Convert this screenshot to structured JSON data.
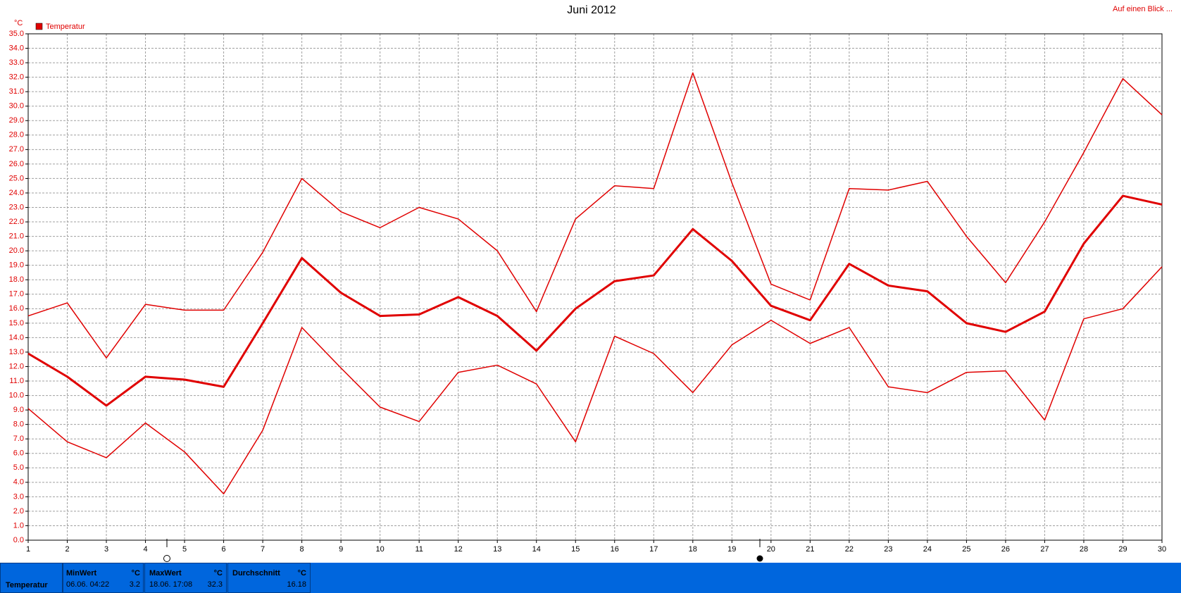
{
  "chart_data": {
    "type": "line",
    "title": "Juni 2012",
    "y_unit": "°C",
    "top_right_link": "Auf einen Blick ...",
    "legend": "Temperatur",
    "grid": true,
    "x": [
      1,
      2,
      3,
      4,
      5,
      6,
      7,
      8,
      9,
      10,
      11,
      12,
      13,
      14,
      15,
      16,
      17,
      18,
      19,
      20,
      21,
      22,
      23,
      24,
      25,
      26,
      27,
      28,
      29,
      30
    ],
    "xlim": [
      1,
      30
    ],
    "xticks": [
      1,
      2,
      3,
      4,
      5,
      6,
      7,
      8,
      9,
      10,
      11,
      12,
      13,
      14,
      15,
      16,
      17,
      18,
      19,
      20,
      21,
      22,
      23,
      24,
      25,
      26,
      27,
      28,
      29,
      30
    ],
    "ylim": [
      0,
      35
    ],
    "yticks": [
      {
        "value": 0,
        "label": "0.0"
      },
      {
        "value": 1,
        "label": "1.0"
      },
      {
        "value": 2,
        "label": "2.0"
      },
      {
        "value": 3,
        "label": "3.0"
      },
      {
        "value": 4,
        "label": "4.0"
      },
      {
        "value": 5,
        "label": "5.0"
      },
      {
        "value": 6,
        "label": "6.0"
      },
      {
        "value": 7,
        "label": "7.0"
      },
      {
        "value": 8,
        "label": "8.0"
      },
      {
        "value": 9,
        "label": "9.0"
      },
      {
        "value": 10,
        "label": "10.0"
      },
      {
        "value": 11,
        "label": "11.0"
      },
      {
        "value": 12,
        "label": "12.0"
      },
      {
        "value": 13,
        "label": "13.0"
      },
      {
        "value": 14,
        "label": "14.0"
      },
      {
        "value": 15,
        "label": "15.0"
      },
      {
        "value": 16,
        "label": "16.0"
      },
      {
        "value": 17,
        "label": "17.0"
      },
      {
        "value": 18,
        "label": "18.0"
      },
      {
        "value": 19,
        "label": "19.0"
      },
      {
        "value": 20,
        "label": "20.0"
      },
      {
        "value": 21,
        "label": "21.0"
      },
      {
        "value": 22,
        "label": "22.0"
      },
      {
        "value": 23,
        "label": "23.0"
      },
      {
        "value": 24,
        "label": "24.0"
      },
      {
        "value": 25,
        "label": "25.0"
      },
      {
        "value": 26,
        "label": "26.0"
      },
      {
        "value": 27,
        "label": "27.0"
      },
      {
        "value": 28,
        "label": "28.0"
      },
      {
        "value": 29,
        "label": "29.0"
      },
      {
        "value": 30,
        "label": "30.0"
      },
      {
        "value": 31,
        "label": "31.0"
      },
      {
        "value": 32,
        "label": "32.0"
      },
      {
        "value": 33,
        "label": "33.0"
      },
      {
        "value": 34,
        "label": "34.0"
      },
      {
        "value": 35,
        "label": "35.0"
      }
    ],
    "series": [
      {
        "color": "#e00000",
        "line_width": 1.5,
        "values": [
          15.5,
          16.4,
          12.6,
          16.3,
          15.9,
          15.9,
          19.9,
          25.0,
          22.7,
          21.6,
          23.0,
          22.2,
          20.0,
          15.8,
          22.2,
          24.5,
          24.3,
          32.3,
          24.7,
          17.7,
          16.6,
          24.3,
          24.2,
          24.8,
          21.0,
          17.8,
          22.0,
          26.8,
          31.9,
          29.4
        ]
      },
      {
        "color": "#e00000",
        "line_width": 3,
        "values": [
          12.9,
          11.3,
          9.3,
          11.3,
          11.1,
          10.6,
          15.0,
          19.5,
          17.1,
          15.5,
          15.6,
          16.8,
          15.5,
          13.1,
          16.0,
          17.9,
          18.3,
          21.5,
          19.3,
          16.2,
          15.2,
          19.1,
          17.6,
          17.2,
          15.0,
          14.4,
          15.8,
          20.5,
          23.8,
          23.2
        ]
      },
      {
        "color": "#e00000",
        "line_width": 1.5,
        "values": [
          9.1,
          6.8,
          5.7,
          8.1,
          6.1,
          3.2,
          7.6,
          14.7,
          11.9,
          9.2,
          8.2,
          11.6,
          12.1,
          10.8,
          6.8,
          14.1,
          12.9,
          10.2,
          13.5,
          15.2,
          13.6,
          14.7,
          10.6,
          10.2,
          11.6,
          11.7,
          8.3,
          15.3,
          16.0,
          18.9
        ]
      }
    ]
  },
  "summary": {
    "row_label": "Temperatur",
    "min": {
      "label": "MinWert",
      "unit": "°C",
      "time": "06.06. 04:22",
      "value": 3.2
    },
    "max": {
      "label": "MaxWert",
      "unit": "°C",
      "time": "18.06. 17:08",
      "value": 32.3
    },
    "avg": {
      "label": "Durchschnitt",
      "unit": "°C",
      "value": 16.18
    }
  }
}
